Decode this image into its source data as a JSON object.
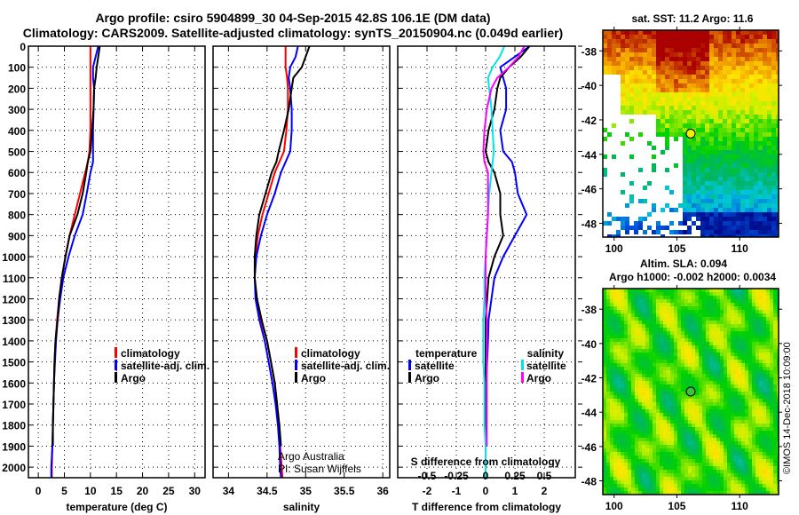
{
  "title_line1": "Argo profile: csiro 5904899_30 04-Sep-2015 42.8S 106.1E (DM data)",
  "title_line2": "Climatology: CARS2009. Satellite-adjusted climatology: synTS_20150904.nc (0.049d earlier)",
  "credit_line1": "Argo Australia",
  "credit_line2": "PI: Susan Wijffels",
  "watermark": "©IMOS 14-Dec-2018 10:09:00",
  "colors": {
    "climatology": "#ff0000",
    "satellite": "#0000ff",
    "argo": "#000000",
    "s_satellite": "#00e5e5",
    "s_argo": "#ff00ff"
  },
  "chart_data": [
    {
      "type": "line",
      "title": "",
      "xlabel": "temperature (deg C)",
      "ylabel": "",
      "xlim": [
        -1.9,
        32
      ],
      "ylim": [
        2050,
        0
      ],
      "xticks": [
        "0",
        "5",
        "10",
        "15",
        "20",
        "25",
        "30"
      ],
      "xtick_values": [
        0,
        5,
        10,
        15,
        20,
        25,
        30
      ],
      "yticks": [
        "0",
        "100",
        "200",
        "300",
        "400",
        "500",
        "600",
        "700",
        "800",
        "900",
        "1000",
        "1100",
        "1200",
        "1300",
        "1400",
        "1500",
        "1600",
        "1700",
        "1800",
        "1900",
        "2000"
      ],
      "legend": [
        "climatology",
        "satellite-adj. clim.",
        "Argo"
      ],
      "legend_placement": "lower-right",
      "depth": [
        0,
        50,
        100,
        150,
        200,
        300,
        400,
        500,
        550,
        600,
        700,
        800,
        900,
        1000,
        1100,
        1200,
        1300,
        1400,
        1500,
        1600,
        1700,
        1800,
        1900,
        2000,
        2050
      ],
      "series": [
        {
          "name": "climatology",
          "color": "#ff0000",
          "values": [
            10,
            10,
            10,
            10,
            10,
            10,
            10,
            9.8,
            9.5,
            9,
            8,
            7,
            6,
            5.2,
            4.5,
            4,
            3.6,
            3.3,
            3.1,
            3,
            2.9,
            2.8,
            2.7,
            2.6,
            2.6
          ]
        },
        {
          "name": "satellite-adj. clim.",
          "color": "#0000ff",
          "values": [
            11.5,
            11,
            10.5,
            10.5,
            10.7,
            10.6,
            10.5,
            10.5,
            10.5,
            10,
            9.3,
            8.5,
            7,
            5.8,
            4.8,
            4.2,
            3.7,
            3.4,
            3.2,
            3,
            2.9,
            2.8,
            2.7,
            2.5,
            2.5
          ]
        },
        {
          "name": "Argo",
          "color": "#000000",
          "values": [
            11.8,
            11.5,
            11.2,
            11,
            10.7,
            10.6,
            10.3,
            10,
            9.5,
            9.2,
            8.5,
            7.5,
            6,
            5.2,
            4.5,
            4,
            3.7,
            3.3,
            3.1,
            3,
            2.9,
            2.8,
            2.8,
            null,
            null
          ]
        }
      ]
    },
    {
      "type": "line",
      "title": "",
      "xlabel": "salinity",
      "ylabel": "",
      "xlim": [
        33.8,
        36.09
      ],
      "ylim": [
        2050,
        0
      ],
      "xticks": [
        "34",
        "34.5",
        "35",
        "35.5",
        "36"
      ],
      "xtick_values": [
        34,
        34.5,
        35,
        35.5,
        36
      ],
      "legend": [
        "climatology",
        "satellite-adj. clim.",
        "Argo"
      ],
      "legend_placement": "lower-right",
      "depth": [
        0,
        50,
        100,
        150,
        200,
        300,
        400,
        500,
        550,
        600,
        700,
        800,
        900,
        1000,
        1100,
        1200,
        1300,
        1400,
        1500,
        1600,
        1700,
        1800,
        1900,
        2000,
        2050
      ],
      "series": [
        {
          "name": "climatology",
          "color": "#ff0000",
          "values": [
            34.74,
            34.74,
            34.74,
            34.76,
            34.77,
            34.77,
            34.75,
            34.72,
            34.66,
            34.6,
            34.52,
            34.44,
            34.38,
            34.35,
            34.34,
            34.36,
            34.42,
            34.5,
            34.55,
            34.6,
            34.63,
            34.65,
            34.67,
            34.69,
            34.7
          ]
        },
        {
          "name": "satellite-adj. clim.",
          "color": "#0000ff",
          "values": [
            34.9,
            34.87,
            34.8,
            34.78,
            34.8,
            34.82,
            34.82,
            34.8,
            34.74,
            34.68,
            34.6,
            34.5,
            34.42,
            34.36,
            34.34,
            34.35,
            34.4,
            34.47,
            34.52,
            34.57,
            34.61,
            34.64,
            34.66,
            34.67,
            34.68
          ]
        },
        {
          "name": "Argo",
          "color": "#000000",
          "values": [
            35.05,
            35.0,
            34.95,
            34.84,
            34.82,
            34.78,
            34.72,
            34.65,
            34.62,
            34.56,
            34.48,
            34.4,
            34.36,
            34.34,
            34.34,
            34.37,
            34.43,
            34.5,
            34.55,
            34.6,
            34.63,
            34.66,
            34.68,
            null,
            null
          ]
        }
      ]
    },
    {
      "type": "line",
      "title": "",
      "xlabel": "T difference from climatology",
      "x2label": "S difference from climatology",
      "xlim": [
        -3,
        3.06
      ],
      "ylim": [
        2050,
        0
      ],
      "xticks": [
        "-2",
        "-1",
        "0",
        "1",
        "2"
      ],
      "xtick_values": [
        -2,
        -1,
        0,
        1,
        2
      ],
      "x2ticks": [
        "-0.5",
        "-0.25",
        "0",
        "0.25",
        "0.5"
      ],
      "x2tick_values": [
        -0.5,
        -0.25,
        0,
        0.25,
        0.5
      ],
      "legend_temperature": {
        "heading": "temperature",
        "items": [
          "satellite",
          "Argo"
        ]
      },
      "legend_salinity": {
        "heading": "salinity",
        "items": [
          "satellite",
          "Argo"
        ]
      },
      "legend_placement": "lower-center",
      "depth": [
        0,
        50,
        100,
        150,
        200,
        300,
        400,
        500,
        550,
        600,
        700,
        800,
        900,
        1000,
        1100,
        1200,
        1300,
        1400,
        1500,
        1600,
        1700,
        1800,
        1900,
        2000,
        2050
      ],
      "series": [
        {
          "name": "T satellite",
          "color": "#0000ff",
          "values": [
            1.5,
            1.0,
            0.5,
            0.6,
            0.7,
            0.7,
            0.5,
            0.6,
            0.9,
            1.0,
            1.1,
            1.4,
            1.0,
            0.6,
            0.3,
            0.2,
            0.1,
            0.08,
            0.05,
            0.02,
            0,
            0,
            0,
            0,
            0
          ]
        },
        {
          "name": "T Argo",
          "color": "#000000",
          "values": [
            1.5,
            1.2,
            0.8,
            0.5,
            0.4,
            0.3,
            0.1,
            0,
            0.1,
            0.3,
            0.5,
            0.5,
            0.6,
            0.3,
            0.1,
            0.05,
            0,
            0,
            0,
            0,
            0,
            0,
            0,
            null,
            null
          ]
        },
        {
          "name": "S satellite",
          "color": "#00e5e5",
          "values": [
            0.16,
            0.12,
            0.06,
            0.02,
            0.03,
            0.05,
            0.06,
            0.07,
            0.06,
            0.05,
            0.03,
            0.02,
            0.01,
            0,
            -0.01,
            -0.01,
            -0.02,
            -0.02,
            -0.02,
            -0.01,
            -0.01,
            -0.01,
            0,
            0,
            0
          ]
        },
        {
          "name": "S Argo",
          "color": "#ff00ff",
          "values": [
            0.33,
            0.28,
            0.2,
            0.1,
            0.05,
            0.01,
            -0.01,
            -0.02,
            -0.01,
            0.02,
            0.02,
            0.02,
            0.01,
            0,
            0,
            0,
            0.01,
            0.01,
            0.01,
            0.01,
            0.01,
            0.01,
            0.01,
            null,
            null
          ]
        }
      ]
    },
    {
      "type": "heatmap",
      "title": "sat. SST: 11.2 Argo: 11.6",
      "xlim": [
        99.1,
        113.1
      ],
      "ylim": [
        -48.8,
        -36.8
      ],
      "xticks": [
        "100",
        "105",
        "110"
      ],
      "xtick_values": [
        100,
        105,
        110
      ],
      "yticks": [
        "-38",
        "-40",
        "-42",
        "-44",
        "-46",
        "-48"
      ],
      "ytick_values": [
        -38,
        -40,
        -42,
        -44,
        -46,
        -48
      ],
      "marker": {
        "lon": 106.1,
        "lat": -42.8
      }
    },
    {
      "type": "heatmap",
      "title": "Altim. SLA: 0.094",
      "subtitle": "Argo h1000: -0.002 h2000: 0.0034",
      "xlim": [
        99.1,
        113.1
      ],
      "ylim": [
        -48.8,
        -36.8
      ],
      "xticks": [
        "100",
        "105",
        "110"
      ],
      "xtick_values": [
        100,
        105,
        110
      ],
      "yticks": [
        "-38",
        "-40",
        "-42",
        "-44",
        "-46",
        "-48"
      ],
      "ytick_values": [
        -38,
        -40,
        -42,
        -44,
        -46,
        -48
      ],
      "marker": {
        "lon": 106.1,
        "lat": -42.8
      }
    }
  ]
}
